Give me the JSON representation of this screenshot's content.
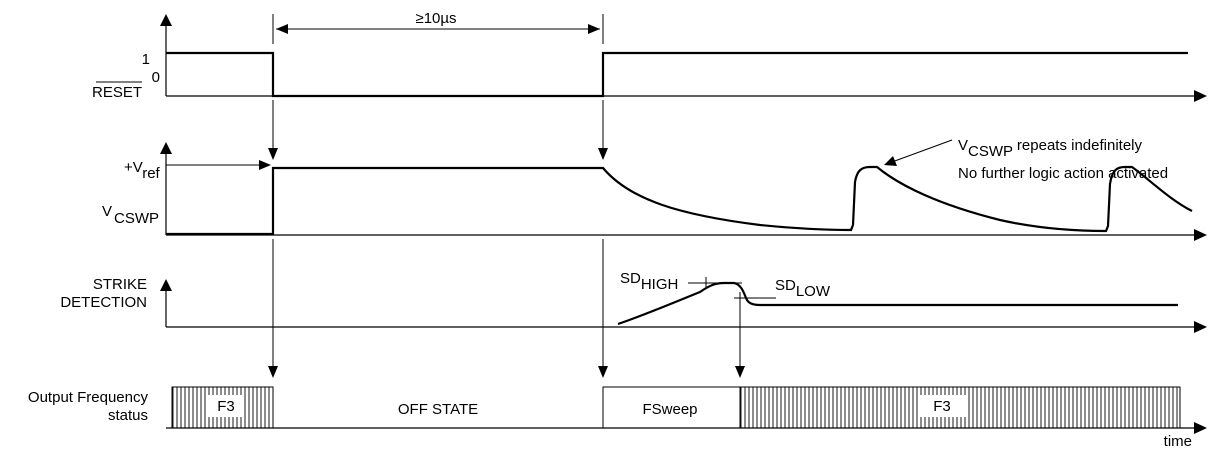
{
  "reset": {
    "label": "RESET",
    "level_high": "1",
    "level_low": "0"
  },
  "pulse_width": {
    "label": "≥10µs"
  },
  "vcswp": {
    "vref_plus": "+V",
    "vref_sub": "ref",
    "v_label": "V",
    "v_sub": "CSWP"
  },
  "annotation": {
    "line1_v": "V",
    "line1_sub": "CSWP",
    "line1_rest": " repeats indefinitely",
    "line2": "No further logic action activated"
  },
  "strike": {
    "line1": "STRIKE",
    "line2": "DETECTION",
    "sd_high_main": "SD",
    "sd_high_sub": "HIGH",
    "sd_low_main": "SD",
    "sd_low_sub": "LOW"
  },
  "output": {
    "line1": "Output Frequency",
    "line2": "status",
    "seg_f3_left": "F3",
    "seg_off": "OFF STATE",
    "seg_fsweep": "FSweep",
    "seg_f3_right": "F3"
  },
  "axis": {
    "time": "time"
  }
}
